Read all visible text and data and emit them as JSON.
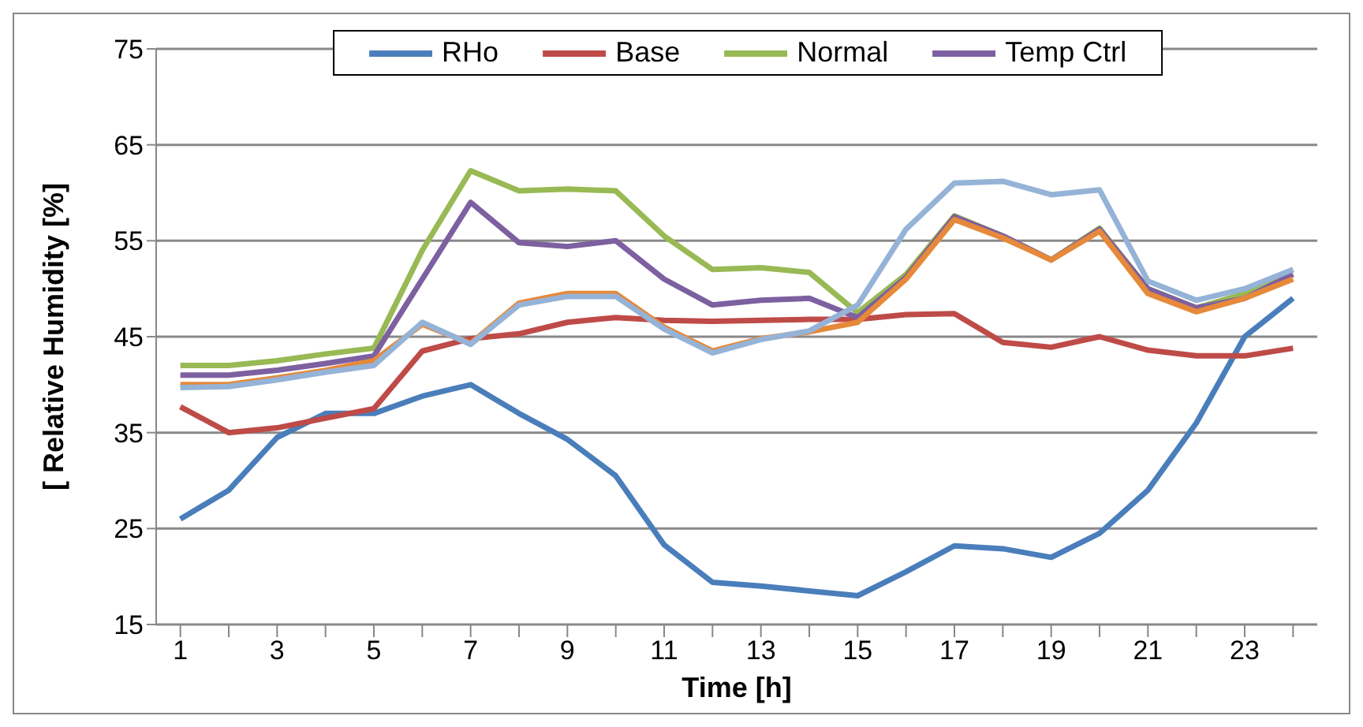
{
  "chart_data": {
    "type": "line",
    "xlabel": "Time [h]",
    "ylabel": "[ Relative Humidity [%]",
    "x": [
      1,
      2,
      3,
      4,
      5,
      6,
      7,
      8,
      9,
      10,
      11,
      12,
      13,
      14,
      15,
      16,
      17,
      18,
      19,
      20,
      21,
      22,
      23,
      24
    ],
    "xlim": [
      0.5,
      24.5
    ],
    "xticks": [
      1,
      {
        "value": 2,
        "label": null
      },
      3,
      {
        "value": 4,
        "label": null
      },
      5,
      {
        "value": 6,
        "label": null
      },
      7,
      {
        "value": 8,
        "label": null
      },
      9,
      {
        "value": 10,
        "label": null
      },
      11,
      {
        "value": 12,
        "label": null
      },
      13,
      {
        "value": 14,
        "label": null
      },
      15,
      {
        "value": 16,
        "label": null
      },
      17,
      {
        "value": 18,
        "label": null
      },
      19,
      {
        "value": 20,
        "label": null
      },
      21,
      {
        "value": 22,
        "label": null
      },
      23,
      {
        "value": 24,
        "label": null
      }
    ],
    "ylim": [
      15,
      75
    ],
    "yticks": [
      15,
      25,
      35,
      45,
      55,
      65,
      75
    ],
    "grid": "y",
    "legend": "top",
    "marker": "none",
    "line_style": "solid",
    "series": [
      {
        "name": "RHo",
        "color": "#4a7ebb",
        "values": [
          26,
          29,
          34.5,
          37,
          37,
          38.8,
          40,
          37,
          34.3,
          30.5,
          23.3,
          19.4,
          19,
          18.5,
          18,
          20.5,
          23.2,
          22.9,
          22,
          24.5,
          29,
          36,
          45,
          49
        ]
      },
      {
        "name": "Base",
        "color": "#be4b48",
        "values": [
          37.7,
          35,
          35.5,
          36.5,
          37.5,
          43.5,
          44.8,
          45.3,
          46.5,
          47,
          46.7,
          46.6,
          46.7,
          46.8,
          46.8,
          47.3,
          47.4,
          44.4,
          43.9,
          45,
          43.6,
          43,
          43,
          43.8
        ]
      },
      {
        "name": "Normal",
        "color": "#98b954",
        "values": [
          42,
          42,
          42.5,
          43.2,
          43.8,
          54,
          62.3,
          60.2,
          60.4,
          60.2,
          55.5,
          52,
          52.2,
          51.7,
          47.5,
          51.5,
          57.6,
          55.5,
          53,
          56.3,
          50,
          48,
          49.5,
          52
        ]
      },
      {
        "name": "Temp Ctrl",
        "color": "#7d60a0",
        "values": [
          41,
          41,
          41.5,
          42.2,
          43,
          51,
          59,
          54.8,
          54.4,
          55,
          51,
          48.3,
          48.8,
          49,
          47,
          51.2,
          57.5,
          55.5,
          53,
          56.2,
          50,
          48,
          49,
          51.5
        ]
      },
      {
        "color": "#e6893a",
        "values": [
          40,
          40,
          40.7,
          41.5,
          42.5,
          46.3,
          44.3,
          48.5,
          49.5,
          49.5,
          46,
          43.5,
          44.8,
          45.5,
          46.5,
          51,
          57.2,
          55.3,
          53,
          56,
          49.5,
          47.6,
          49,
          51
        ]
      },
      {
        "color": "#95b3d7",
        "values": [
          39.7,
          39.8,
          40.5,
          41.3,
          42,
          46.5,
          44.2,
          48.3,
          49.2,
          49.2,
          45.8,
          43.3,
          44.7,
          45.6,
          48.3,
          56.2,
          61,
          61.2,
          59.8,
          60.3,
          50.8,
          48.8,
          50,
          52
        ]
      }
    ]
  }
}
